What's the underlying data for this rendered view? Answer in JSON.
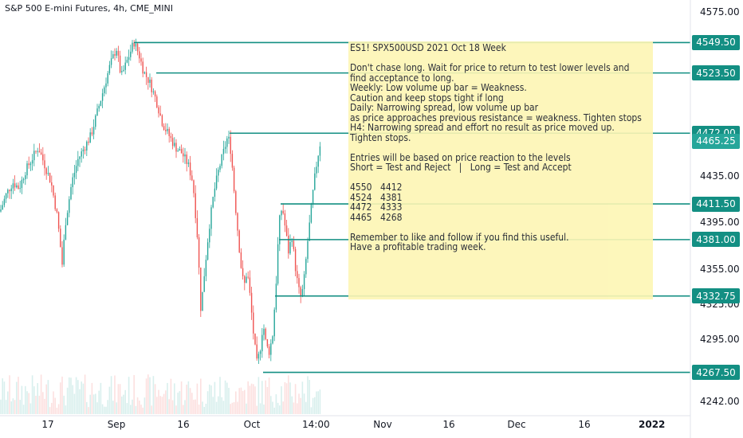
{
  "title": "S&P 500 E-mini Futures, 4h, CME_MINI",
  "note": {
    "heading": "ES1! SPX500USD 2021 Oct 18 Week",
    "lines": [
      "",
      "Don't chase long. Wait for price to return to test lower levels and",
      "find acceptance to long.",
      "Weekly: Low volume up bar = Weakness.",
      "Caution and keep stops tight if long",
      "Daily: Narrowing spread, low volume up bar",
      "as price approaches previous resistance = weakness. Tighten stops",
      "H4: Narrowing spread and effort no result as price moved up.",
      "Tighten stops.",
      "",
      "Entries will be based on price reaction to the levels",
      "Short = Test and Reject   |   Long = Test and Accept",
      ""
    ],
    "levels": [
      [
        "4550",
        "4412"
      ],
      [
        "4524",
        "4381"
      ],
      [
        "4472",
        "4333"
      ],
      [
        "4465",
        "4268"
      ]
    ],
    "footer": [
      "",
      "Remember to like and follow if you find this useful.",
      "Have a profitable trading week."
    ]
  },
  "colors": {
    "up": "#26a69a",
    "down": "#ef5350",
    "level_line": "#138f83",
    "tag": "#138f83",
    "note_bg": "#fdf6b4",
    "last_price_tag": "#26a69a"
  },
  "chart_data": {
    "type": "candlestick",
    "y_ticks": [
      4242,
      4295,
      4325,
      4355,
      4395,
      4435,
      4575
    ],
    "y_tick_labels": [
      "4242.00",
      "4295.00",
      "4325.00",
      "4355.00",
      "4395.00",
      "4435.00",
      "4575.00"
    ],
    "x_tick_labels": [
      "17",
      "Sep",
      "16",
      "Oct",
      "14:00",
      "Nov",
      "16",
      "Dec",
      "16",
      "2022"
    ],
    "ylim": [
      4225,
      4590
    ],
    "price_levels": [
      {
        "label": "4549.50",
        "value": 4549.5
      },
      {
        "label": "4523.50",
        "value": 4523.5
      },
      {
        "label": "4472.00",
        "value": 4472.0
      },
      {
        "label": "4411.50",
        "value": 4411.5
      },
      {
        "label": "4381.00",
        "value": 4381.0
      },
      {
        "label": "4332.75",
        "value": 4332.75
      },
      {
        "label": "4267.50",
        "value": 4267.5
      }
    ],
    "last_price": {
      "label": "4465.25",
      "value": 4465.25
    },
    "price_path": [
      [
        0,
        4405
      ],
      [
        8,
        4420
      ],
      [
        16,
        4430
      ],
      [
        24,
        4425
      ],
      [
        32,
        4440
      ],
      [
        40,
        4450
      ],
      [
        48,
        4460
      ],
      [
        56,
        4445
      ],
      [
        64,
        4430
      ],
      [
        72,
        4400
      ],
      [
        78,
        4360
      ],
      [
        82,
        4395
      ],
      [
        90,
        4430
      ],
      [
        98,
        4450
      ],
      [
        106,
        4460
      ],
      [
        114,
        4470
      ],
      [
        122,
        4490
      ],
      [
        130,
        4510
      ],
      [
        138,
        4530
      ],
      [
        146,
        4545
      ],
      [
        152,
        4520
      ],
      [
        160,
        4535
      ],
      [
        168,
        4550
      ],
      [
        174,
        4540
      ],
      [
        180,
        4525
      ],
      [
        188,
        4515
      ],
      [
        196,
        4500
      ],
      [
        204,
        4480
      ],
      [
        212,
        4470
      ],
      [
        220,
        4460
      ],
      [
        228,
        4455
      ],
      [
        236,
        4445
      ],
      [
        242,
        4430
      ],
      [
        248,
        4380
      ],
      [
        252,
        4320
      ],
      [
        256,
        4350
      ],
      [
        262,
        4390
      ],
      [
        268,
        4420
      ],
      [
        274,
        4440
      ],
      [
        280,
        4455
      ],
      [
        286,
        4470
      ],
      [
        290,
        4455
      ],
      [
        294,
        4420
      ],
      [
        298,
        4390
      ],
      [
        302,
        4360
      ],
      [
        306,
        4340
      ],
      [
        310,
        4355
      ],
      [
        314,
        4330
      ],
      [
        318,
        4300
      ],
      [
        322,
        4275
      ],
      [
        326,
        4285
      ],
      [
        330,
        4310
      ],
      [
        334,
        4290
      ],
      [
        338,
        4285
      ],
      [
        342,
        4300
      ],
      [
        346,
        4340
      ],
      [
        350,
        4395
      ],
      [
        354,
        4410
      ],
      [
        358,
        4390
      ],
      [
        362,
        4370
      ],
      [
        366,
        4385
      ],
      [
        370,
        4360
      ],
      [
        374,
        4340
      ],
      [
        378,
        4330
      ],
      [
        382,
        4350
      ],
      [
        386,
        4380
      ],
      [
        390,
        4405
      ],
      [
        394,
        4430
      ],
      [
        398,
        4450
      ],
      [
        402,
        4465
      ]
    ]
  }
}
